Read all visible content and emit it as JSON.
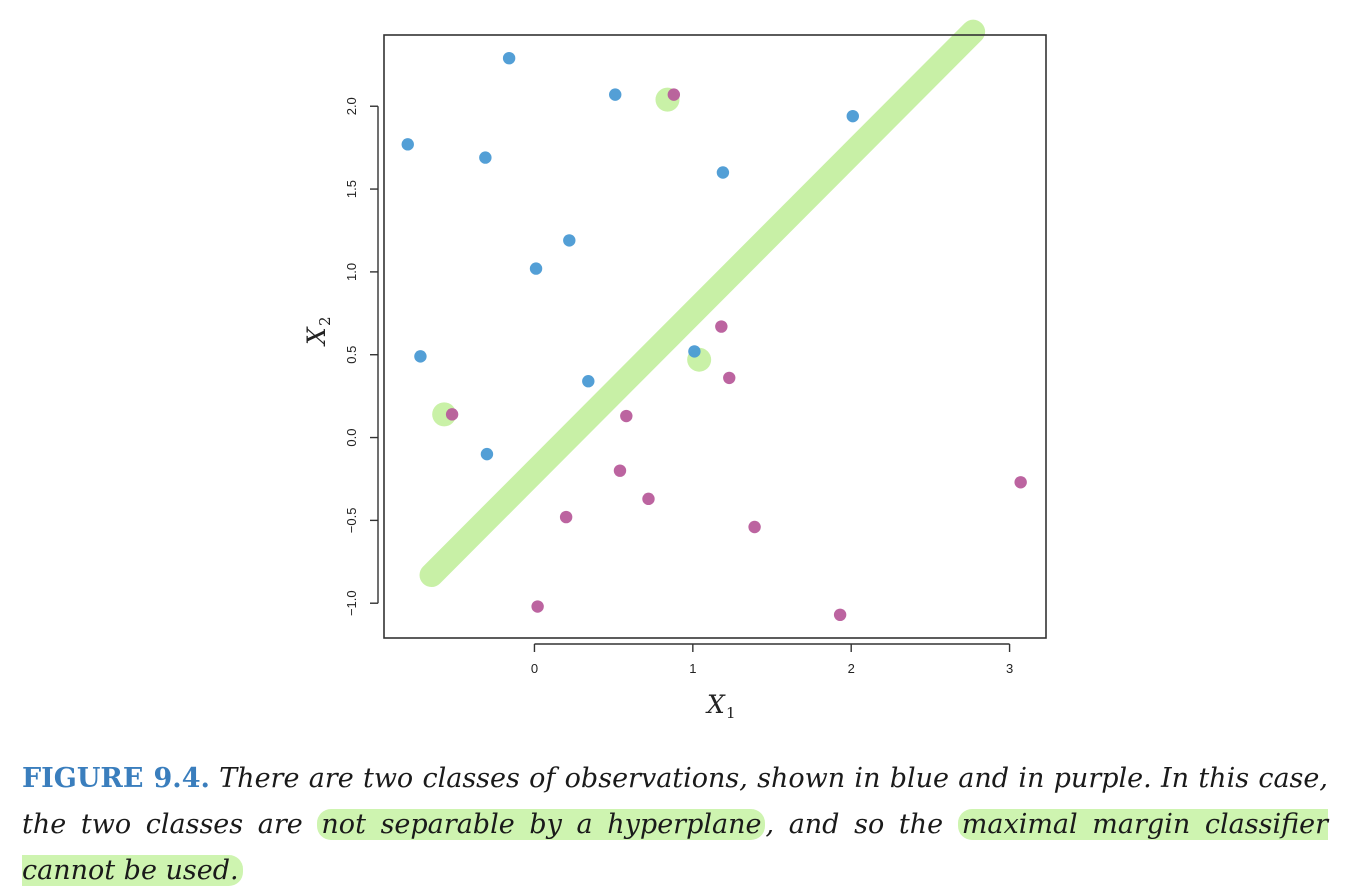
{
  "chart_data": {
    "type": "scatter",
    "xlabel": "X",
    "xlabel_sub": "1",
    "ylabel": "X",
    "ylabel_sub": "2",
    "xlim": [
      -0.95,
      3.23
    ],
    "ylim": [
      -1.21,
      2.43
    ],
    "x_ticks": [
      0,
      1,
      2,
      3
    ],
    "x_tick_labels": [
      "0",
      "1",
      "2",
      "3"
    ],
    "y_ticks": [
      -1.0,
      -0.5,
      0.0,
      0.5,
      1.0,
      1.5,
      2.0
    ],
    "y_tick_labels": [
      "−1.0",
      "−0.5",
      "0.0",
      "0.5",
      "1.0",
      "1.5",
      "2.0"
    ],
    "grid": false,
    "series": [
      {
        "color": "#4a9ad4",
        "points": [
          [
            -0.16,
            2.29
          ],
          [
            0.51,
            2.07
          ],
          [
            2.01,
            1.94
          ],
          [
            -0.8,
            1.77
          ],
          [
            -0.31,
            1.69
          ],
          [
            1.19,
            1.6
          ],
          [
            0.22,
            1.19
          ],
          [
            0.01,
            1.02
          ],
          [
            -0.72,
            0.49
          ],
          [
            1.01,
            0.52
          ],
          [
            0.34,
            0.34
          ],
          [
            -0.3,
            -0.1
          ]
        ]
      },
      {
        "color": "#b85c9b",
        "points": [
          [
            0.88,
            2.07
          ],
          [
            1.18,
            0.67
          ],
          [
            1.23,
            0.36
          ],
          [
            -0.52,
            0.14
          ],
          [
            0.58,
            0.13
          ],
          [
            0.54,
            -0.2
          ],
          [
            0.72,
            -0.37
          ],
          [
            3.07,
            -0.27
          ],
          [
            0.2,
            -0.48
          ],
          [
            1.39,
            -0.54
          ],
          [
            0.02,
            -1.02
          ],
          [
            1.93,
            -1.07
          ]
        ]
      }
    ],
    "annotations": {
      "highlighter_color": "#c6f0a2",
      "line_start": [
        -0.65,
        -0.83
      ],
      "line_end": [
        2.77,
        2.45
      ],
      "circled_points": [
        [
          0.84,
          2.04
        ],
        [
          -0.57,
          0.14
        ],
        [
          1.04,
          0.47
        ]
      ]
    }
  },
  "caption": {
    "label": "FIGURE 9.4.",
    "text_before_highlight": "There are two classes of observations, shown in blue and in purple. In this case, the two classes are",
    "highlight_1": "not separable by a hyperplane",
    "text_between": ", and so the",
    "highlight_2": "maximal margin classifier cannot be used."
  }
}
